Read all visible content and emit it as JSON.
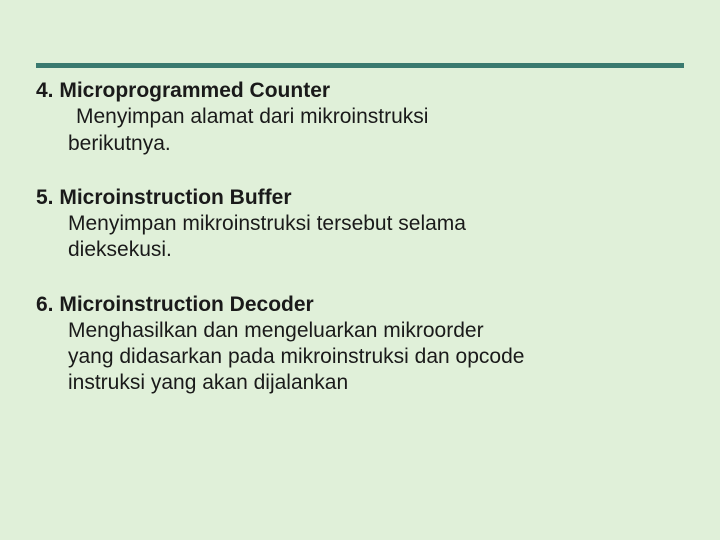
{
  "background_color": "#e0f0d9",
  "divider_color": "#3a7a6f",
  "text_color": "#1a1a1a",
  "font_family": "Verdana, Geneva, sans-serif",
  "body_fontsize": 21,
  "items": [
    {
      "heading": "4. Microprogrammed Counter",
      "line1": " Menyimpan alamat dari mikroinstruksi",
      "line2": "berikutnya."
    },
    {
      "heading": "5. Microinstruction Buffer",
      "line1": "Menyimpan mikroinstruksi tersebut selama",
      "line2": "dieksekusi."
    },
    {
      "heading": "6. Microinstruction Decoder",
      "line1": "Menghasilkan dan mengeluarkan mikroorder",
      "line2": "yang didasarkan pada mikroinstruksi dan opcode",
      "line3": "instruksi yang akan dijalankan"
    }
  ]
}
